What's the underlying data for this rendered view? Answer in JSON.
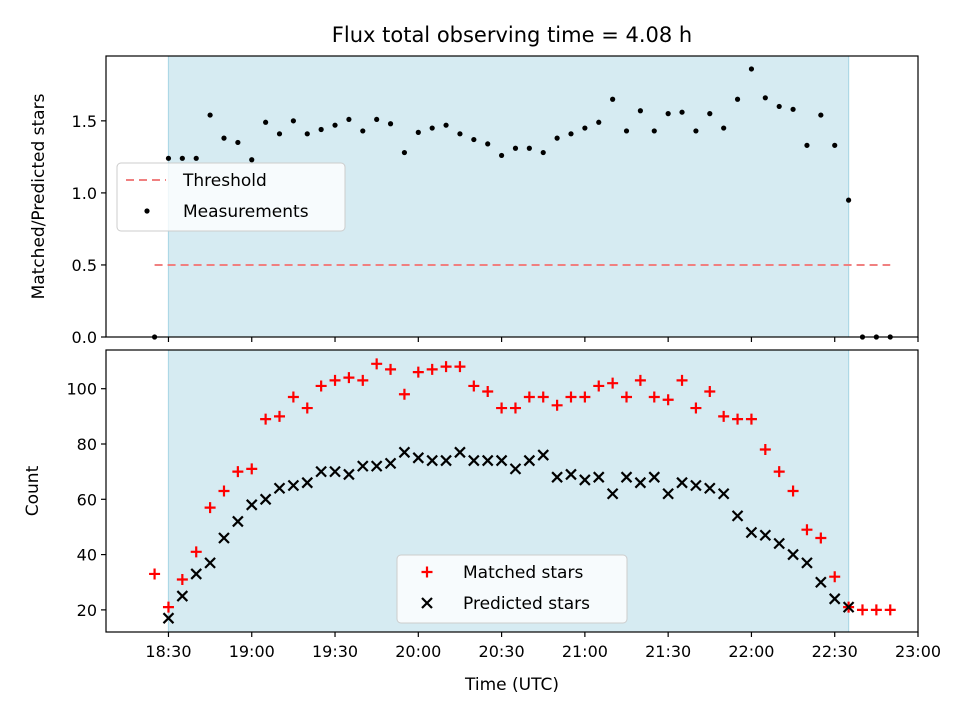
{
  "title": "Flux total observing time = 4.08 h",
  "chart_data": [
    {
      "type": "scatter",
      "ylabel": "Matched/Predicted stars",
      "xlabel": "",
      "x_unit": "minutes after 18:00 UTC",
      "xlim": [
        7.5,
        300
      ],
      "ylim": [
        0,
        1.95
      ],
      "yticks": [
        0.0,
        0.5,
        1.0,
        1.5
      ],
      "ytick_labels": [
        "0.0",
        "0.5",
        "1.0",
        "1.5"
      ],
      "observing_window": [
        30,
        275
      ],
      "legend_position": "center-left",
      "grid": false,
      "threshold": {
        "name": "Threshold",
        "value": 0.5,
        "x_range": [
          25,
          290
        ],
        "color": "#f08080"
      },
      "series": [
        {
          "name": "Measurements",
          "color": "#000000",
          "x": [
            25,
            30,
            35,
            40,
            45,
            50,
            55,
            60,
            65,
            70,
            75,
            80,
            85,
            90,
            95,
            100,
            105,
            110,
            115,
            120,
            125,
            130,
            135,
            140,
            145,
            150,
            155,
            160,
            165,
            170,
            175,
            180,
            185,
            190,
            195,
            200,
            205,
            210,
            215,
            220,
            225,
            230,
            235,
            240,
            245,
            250,
            255,
            260,
            265,
            270,
            275,
            280,
            285,
            290
          ],
          "y": [
            0.0,
            1.24,
            1.24,
            1.24,
            1.54,
            1.38,
            1.35,
            1.23,
            1.49,
            1.41,
            1.5,
            1.41,
            1.44,
            1.47,
            1.51,
            1.43,
            1.51,
            1.48,
            1.28,
            1.42,
            1.45,
            1.47,
            1.41,
            1.37,
            1.34,
            1.26,
            1.31,
            1.31,
            1.28,
            1.38,
            1.41,
            1.45,
            1.49,
            1.65,
            1.43,
            1.57,
            1.43,
            1.55,
            1.56,
            1.43,
            1.55,
            1.45,
            1.65,
            1.86,
            1.66,
            1.6,
            1.58,
            1.33,
            1.54,
            1.33,
            0.95,
            0.0,
            0.0,
            0.0
          ]
        }
      ]
    },
    {
      "type": "scatter",
      "ylabel": "Count",
      "xlabel": "Time (UTC)",
      "x_unit": "minutes after 18:00 UTC",
      "xlim": [
        7.5,
        300
      ],
      "ylim": [
        12,
        114
      ],
      "yticks": [
        20,
        40,
        60,
        80,
        100
      ],
      "ytick_labels": [
        "20",
        "40",
        "60",
        "80",
        "100"
      ],
      "xticks": [
        30,
        60,
        90,
        120,
        150,
        180,
        210,
        240,
        270,
        300
      ],
      "xtick_labels": [
        "18:30",
        "19:00",
        "19:30",
        "20:00",
        "20:30",
        "21:00",
        "21:30",
        "22:00",
        "22:30",
        "23:00"
      ],
      "observing_window": [
        30,
        275
      ],
      "legend_position": "bottom-center",
      "grid": false,
      "series": [
        {
          "name": "Matched stars",
          "marker": "plus",
          "color": "#ff0000",
          "x": [
            25,
            30,
            35,
            40,
            45,
            50,
            55,
            60,
            65,
            70,
            75,
            80,
            85,
            90,
            95,
            100,
            105,
            110,
            115,
            120,
            125,
            130,
            135,
            140,
            145,
            150,
            155,
            160,
            165,
            170,
            175,
            180,
            185,
            190,
            195,
            200,
            205,
            210,
            215,
            220,
            225,
            230,
            235,
            240,
            245,
            250,
            255,
            260,
            265,
            270,
            275,
            280,
            285,
            290
          ],
          "y": [
            33,
            21,
            31,
            41,
            57,
            63,
            70,
            71,
            89,
            90,
            97,
            93,
            101,
            103,
            104,
            103,
            109,
            107,
            98,
            106,
            107,
            108,
            108,
            101,
            99,
            93,
            93,
            97,
            97,
            94,
            97,
            97,
            101,
            102,
            97,
            103,
            97,
            96,
            103,
            93,
            99,
            90,
            89,
            89,
            78,
            70,
            63,
            49,
            46,
            32,
            21,
            20,
            20,
            20
          ]
        },
        {
          "name": "Predicted stars",
          "marker": "x",
          "color": "#000000",
          "x": [
            30,
            35,
            40,
            45,
            50,
            55,
            60,
            65,
            70,
            75,
            80,
            85,
            90,
            95,
            100,
            105,
            110,
            115,
            120,
            125,
            130,
            135,
            140,
            145,
            150,
            155,
            160,
            165,
            170,
            175,
            180,
            185,
            190,
            195,
            200,
            205,
            210,
            215,
            220,
            225,
            230,
            235,
            240,
            245,
            250,
            255,
            260,
            265,
            270,
            275
          ],
          "y": [
            17,
            25,
            33,
            37,
            46,
            52,
            58,
            60,
            64,
            65,
            66,
            70,
            70,
            69,
            72,
            72,
            73,
            77,
            75,
            74,
            74,
            77,
            74,
            74,
            74,
            71,
            74,
            76,
            68,
            69,
            67,
            68,
            62,
            68,
            66,
            68,
            62,
            66,
            65,
            64,
            62,
            54,
            48,
            47,
            44,
            40,
            37,
            30,
            24,
            21
          ]
        }
      ]
    }
  ]
}
